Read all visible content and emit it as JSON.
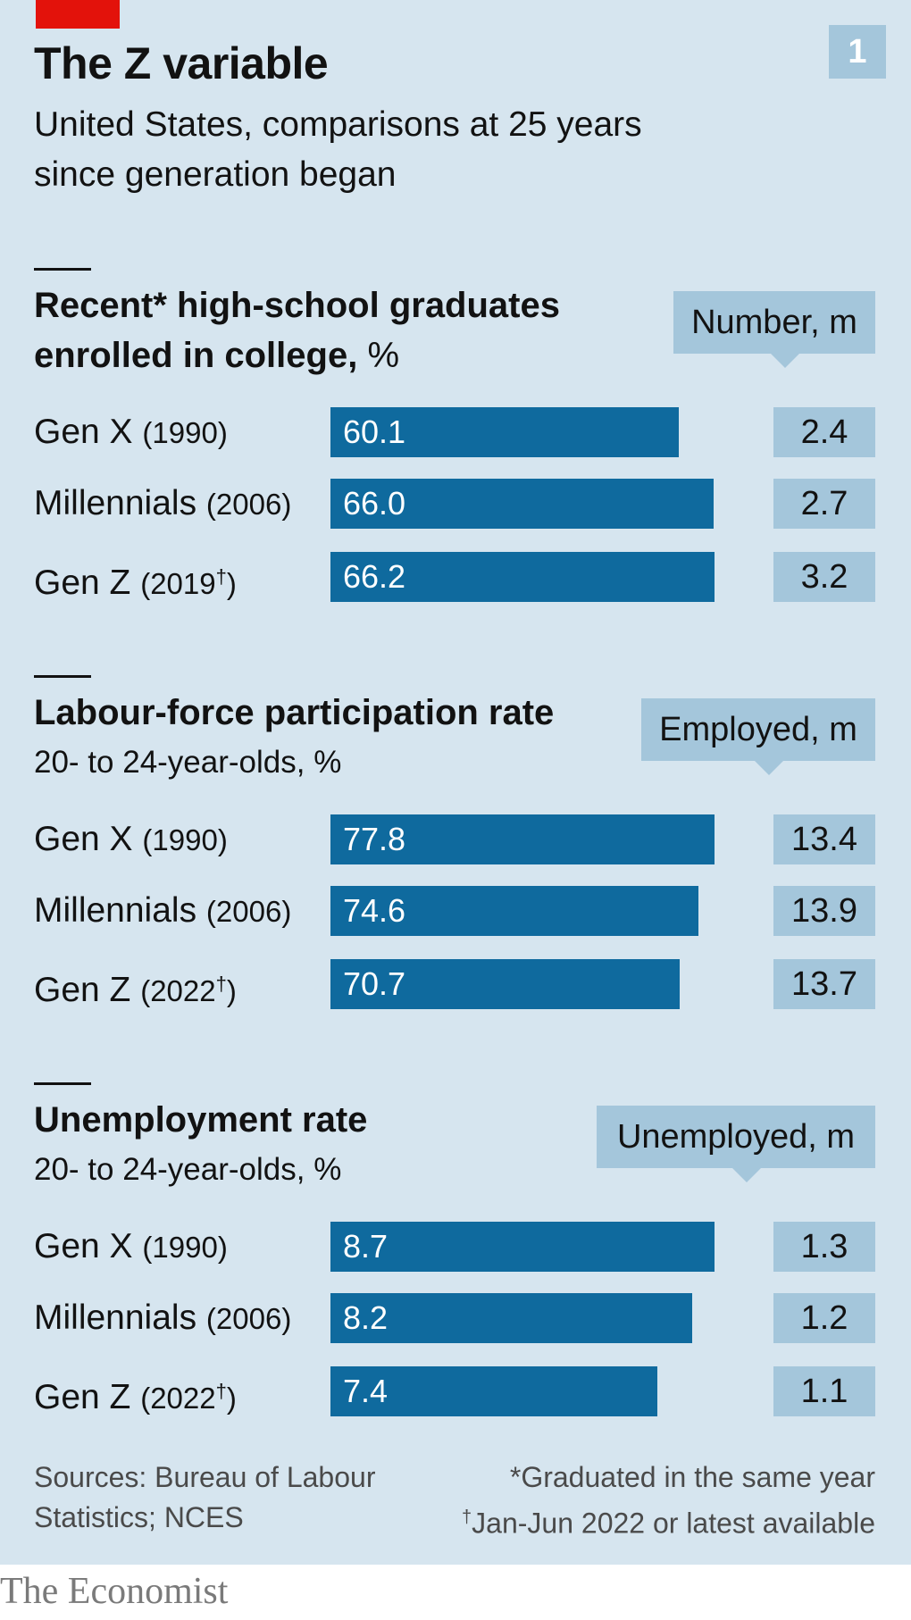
{
  "header": {
    "title": "The Z variable",
    "subtitle": "United States, comparisons at 25 years since generation began",
    "chart_number": "1"
  },
  "chart_data": [
    {
      "type": "bar",
      "orientation": "horizontal",
      "title": "Recent* high-school graduates enrolled in college,",
      "title_unit": "%",
      "subtitle": "",
      "callout_label": "Number, m",
      "categories": [
        {
          "name": "Gen X",
          "year": "(1990)"
        },
        {
          "name": "Millennials",
          "year": "(2006)"
        },
        {
          "name": "Gen Z",
          "year": "(2019",
          "mark": "†",
          "close": ")"
        }
      ],
      "values": [
        60.1,
        66.0,
        66.2
      ],
      "value_labels": [
        "60.1",
        "66.0",
        "66.2"
      ],
      "secondary_values": [
        "2.4",
        "2.7",
        "3.2"
      ],
      "xlim": [
        0,
        66.2
      ]
    },
    {
      "type": "bar",
      "orientation": "horizontal",
      "title": "Labour-force participation rate",
      "title_unit": "",
      "subtitle": "20- to 24-year-olds, %",
      "callout_label": "Employed, m",
      "categories": [
        {
          "name": "Gen X",
          "year": "(1990)"
        },
        {
          "name": "Millennials",
          "year": "(2006)"
        },
        {
          "name": "Gen Z",
          "year": "(2022",
          "mark": "†",
          "close": ")"
        }
      ],
      "values": [
        77.8,
        74.6,
        70.7
      ],
      "value_labels": [
        "77.8",
        "74.6",
        "70.7"
      ],
      "secondary_values": [
        "13.4",
        "13.9",
        "13.7"
      ],
      "xlim": [
        0,
        77.8
      ]
    },
    {
      "type": "bar",
      "orientation": "horizontal",
      "title": "Unemployment rate",
      "title_unit": "",
      "subtitle": "20- to 24-year-olds, %",
      "callout_label": "Unemployed, m",
      "categories": [
        {
          "name": "Gen X",
          "year": "(1990)"
        },
        {
          "name": "Millennials",
          "year": "(2006)"
        },
        {
          "name": "Gen Z",
          "year": "(2022",
          "mark": "†",
          "close": ")"
        }
      ],
      "values": [
        8.7,
        8.2,
        7.4
      ],
      "value_labels": [
        "8.7",
        "8.2",
        "7.4"
      ],
      "secondary_values": [
        "1.3",
        "1.2",
        "1.1"
      ],
      "xlim": [
        0,
        8.7
      ]
    }
  ],
  "footer": {
    "sources": "Sources: Bureau of Labour Statistics; NCES",
    "note_1": "*Graduated in the same year",
    "note_2_mark": "†",
    "note_2": "Jan-Jun 2022 or latest available",
    "brand": "The Economist"
  },
  "colors": {
    "background": "#d6e5ef",
    "bar": "#0f6a9e",
    "callout": "#a4c6db",
    "accent_red": "#e3120b"
  }
}
